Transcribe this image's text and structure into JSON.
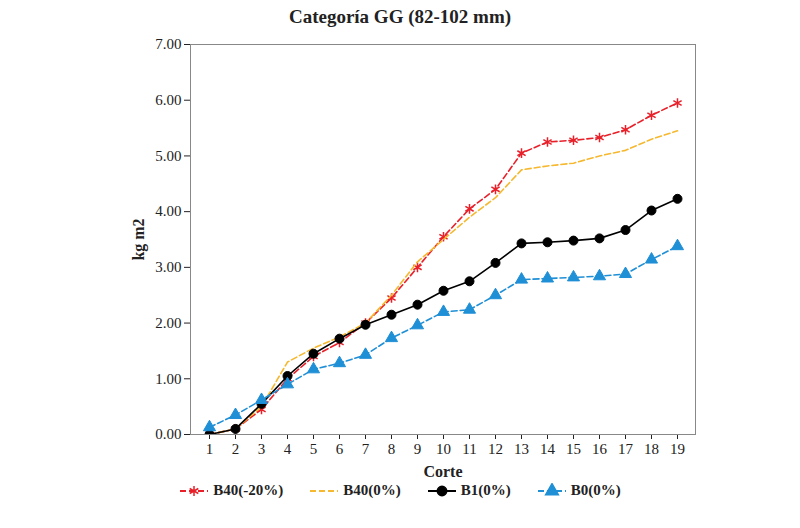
{
  "chart_data": {
    "type": "line",
    "title": "Categoría GG (82-102 mm)",
    "x_label": "Corte",
    "y_label": "kg m2",
    "categories": [
      "1",
      "2",
      "3",
      "4",
      "5",
      "6",
      "7",
      "8",
      "9",
      "10",
      "11",
      "12",
      "13",
      "14",
      "15",
      "16",
      "17",
      "18",
      "19"
    ],
    "ylim": [
      0,
      7
    ],
    "yticks": [
      {
        "value": 0,
        "label": "0.00"
      },
      {
        "value": 1,
        "label": "1.00"
      },
      {
        "value": 2,
        "label": "2.00"
      },
      {
        "value": 3,
        "label": "3.00"
      },
      {
        "value": 4,
        "label": "4.00"
      },
      {
        "value": 5,
        "label": "5.00"
      },
      {
        "value": 6,
        "label": "6.00"
      },
      {
        "value": 7,
        "label": "7.00"
      }
    ],
    "grid": false,
    "legend": "bottom",
    "series": [
      {
        "name": "B40(-20%)",
        "color": "#e8202a",
        "marker": "asterisk",
        "line_style": "dashed",
        "values": [
          0.0,
          0.1,
          0.45,
          1.0,
          1.4,
          1.65,
          2.0,
          2.45,
          3.0,
          3.55,
          4.05,
          4.4,
          5.05,
          5.25,
          5.28,
          5.33,
          5.47,
          5.73,
          5.95
        ]
      },
      {
        "name": "B40(0%)",
        "color": "#f5b82e",
        "marker": "none",
        "line_style": "dashed",
        "values": [
          0.0,
          0.1,
          0.5,
          1.3,
          1.55,
          1.75,
          2.0,
          2.5,
          3.1,
          3.5,
          3.9,
          4.25,
          4.75,
          4.82,
          4.87,
          5.0,
          5.1,
          5.3,
          5.45
        ]
      },
      {
        "name": "B1(0%)",
        "color": "#000000",
        "marker": "circle",
        "line_style": "solid",
        "values": [
          0.0,
          0.1,
          0.55,
          1.05,
          1.45,
          1.72,
          1.97,
          2.15,
          2.33,
          2.58,
          2.75,
          3.08,
          3.43,
          3.45,
          3.48,
          3.52,
          3.67,
          4.02,
          4.23
        ]
      },
      {
        "name": "B0(0%)",
        "color": "#1f8fd6",
        "marker": "triangle",
        "line_style": "dashed",
        "values": [
          0.13,
          0.35,
          0.62,
          0.9,
          1.17,
          1.28,
          1.43,
          1.73,
          1.96,
          2.2,
          2.24,
          2.5,
          2.78,
          2.8,
          2.82,
          2.84,
          2.88,
          3.14,
          3.38
        ]
      }
    ]
  }
}
